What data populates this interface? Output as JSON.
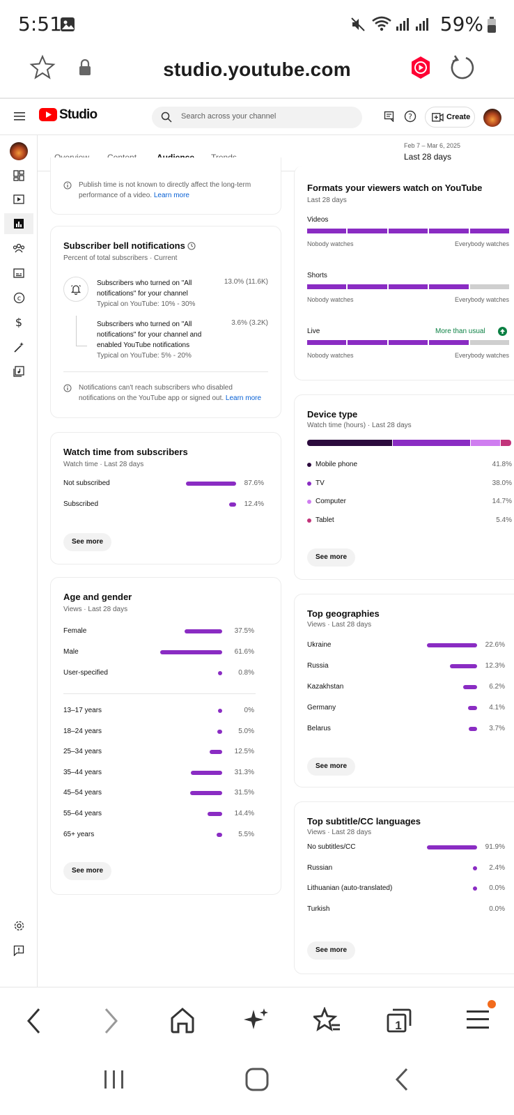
{
  "status_bar": {
    "time": "5:51",
    "battery": "59%"
  },
  "browser": {
    "url": "studio.youtube.com",
    "tab_count": "1"
  },
  "header": {
    "logo_text": "Studio",
    "search_placeholder": "Search across your channel",
    "create_label": "Create"
  },
  "tabs": [
    "Overview",
    "Content",
    "Audience",
    "Trends"
  ],
  "date_range": {
    "range": "Feb 7 – Mar 6, 2025",
    "label": "Last 28 days"
  },
  "publish_note": {
    "text": "Publish time is not known to directly affect the long-term performance of a video.",
    "link": "Learn more"
  },
  "bell": {
    "title": "Subscriber bell notifications",
    "subtitle": "Percent of total subscribers · Current",
    "row1": {
      "text": "Subscribers who turned on \"All notifications\" for your channel",
      "typical": "Typical on YouTube: 10% - 30%",
      "value": "13.0% (11.6K)"
    },
    "row2": {
      "text": "Subscribers who turned on \"All notifications\" for your channel and enabled YouTube notifications",
      "typical": "Typical on YouTube: 5% - 20%",
      "value": "3.6% (3.2K)"
    },
    "note": "Notifications can't reach subscribers who disabled notifications on the YouTube app or signed out.",
    "note_link": "Learn more"
  },
  "watch_subs": {
    "title": "Watch time from subscribers",
    "subtitle": "Watch time · Last 28 days",
    "rows": [
      {
        "label": "Not subscribed",
        "value": "87.6%",
        "pct": 87.6
      },
      {
        "label": "Subscribed",
        "value": "12.4%",
        "pct": 12.4
      }
    ],
    "see_more": "See more"
  },
  "age_gender": {
    "title": "Age and gender",
    "subtitle": "Views · Last 28 days",
    "gender": [
      {
        "label": "Female",
        "value": "37.5%",
        "pct": 37.5
      },
      {
        "label": "Male",
        "value": "61.6%",
        "pct": 61.6
      },
      {
        "label": "User-specified",
        "value": "0.8%",
        "pct": 0.8
      }
    ],
    "ages": [
      {
        "label": "13–17 years",
        "value": "0%",
        "pct": 0
      },
      {
        "label": "18–24 years",
        "value": "5.0%",
        "pct": 5.0
      },
      {
        "label": "25–34 years",
        "value": "12.5%",
        "pct": 12.5
      },
      {
        "label": "35–44 years",
        "value": "31.3%",
        "pct": 31.3
      },
      {
        "label": "45–54 years",
        "value": "31.5%",
        "pct": 31.5
      },
      {
        "label": "55–64 years",
        "value": "14.4%",
        "pct": 14.4
      },
      {
        "label": "65+ years",
        "value": "5.5%",
        "pct": 5.5
      }
    ],
    "see_more": "See more"
  },
  "formats": {
    "title": "Formats your viewers watch on YouTube",
    "subtitle": "Last 28 days",
    "rows": [
      {
        "label": "Videos",
        "filled": 5,
        "badge": ""
      },
      {
        "label": "Shorts",
        "filled": 4,
        "badge": ""
      },
      {
        "label": "Live",
        "filled": 4,
        "badge": "More than usual"
      }
    ],
    "scale_left": "Nobody watches",
    "scale_right": "Everybody watches"
  },
  "device": {
    "title": "Device type",
    "subtitle": "Watch time (hours) · Last 28 days",
    "items": [
      {
        "label": "Mobile phone",
        "value": "41.8%",
        "pct": 41.8,
        "color": "#2b0a3d"
      },
      {
        "label": "TV",
        "value": "38.0%",
        "pct": 38.0,
        "color": "#8a2cc3"
      },
      {
        "label": "Computer",
        "value": "14.7%",
        "pct": 14.7,
        "color": "#cf7df0"
      },
      {
        "label": "Tablet",
        "value": "5.4%",
        "pct": 5.4,
        "color": "#c2337a"
      }
    ],
    "see_more": "See more"
  },
  "geo": {
    "title": "Top geographies",
    "subtitle": "Views · Last 28 days",
    "rows": [
      {
        "label": "Ukraine",
        "value": "22.6%",
        "pct": 22.6
      },
      {
        "label": "Russia",
        "value": "12.3%",
        "pct": 12.3
      },
      {
        "label": "Kazakhstan",
        "value": "6.2%",
        "pct": 6.2
      },
      {
        "label": "Germany",
        "value": "4.1%",
        "pct": 4.1
      },
      {
        "label": "Belarus",
        "value": "3.7%",
        "pct": 3.7
      }
    ],
    "see_more": "See more"
  },
  "subtitles": {
    "title": "Top subtitle/CC languages",
    "subtitle": "Views · Last 28 days",
    "rows": [
      {
        "label": "No subtitles/CC",
        "value": "91.9%",
        "pct": 91.9
      },
      {
        "label": "Russian",
        "value": "2.4%",
        "pct": 2.4
      },
      {
        "label": "Lithuanian (auto-translated)",
        "value": "0.0%",
        "pct": 0.0
      },
      {
        "label": "Turkish",
        "value": "0.0%",
        "pct": 0.0
      }
    ],
    "see_more": "See more"
  },
  "colors": {
    "accent": "#8a2cc3",
    "brand_red": "#ff0000",
    "link": "#065fd4",
    "badge_green": "#0b8043"
  }
}
